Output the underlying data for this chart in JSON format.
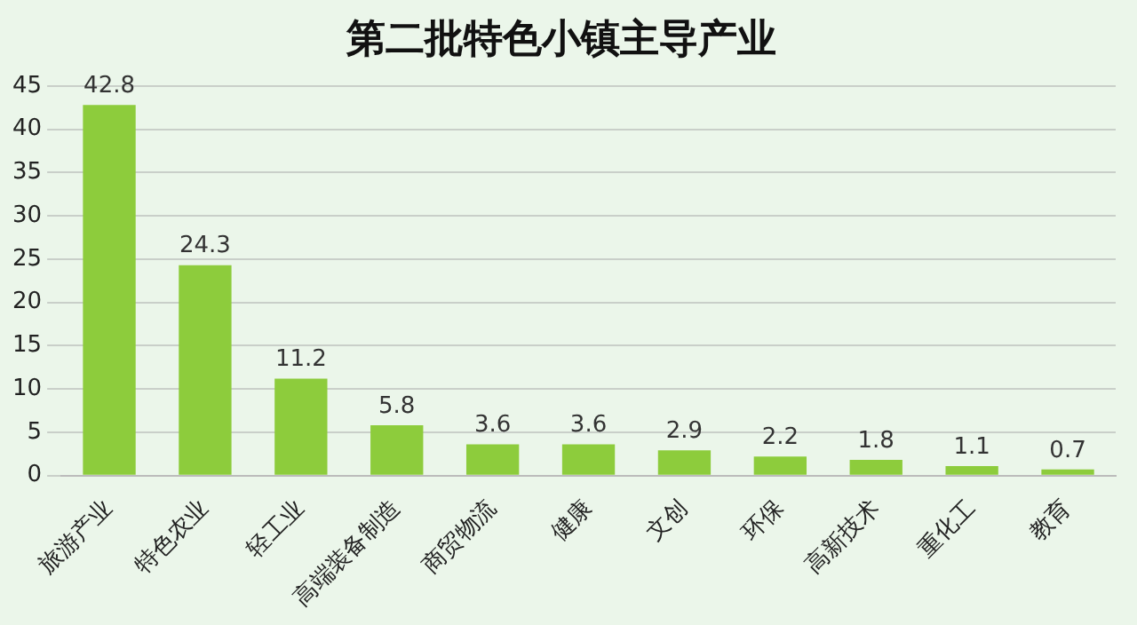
{
  "chart_data": {
    "type": "bar",
    "title": "第二批特色小镇主导产业",
    "categories": [
      "旅游产业",
      "特色农业",
      "轻工业",
      "高端装备制造",
      "商贸物流",
      "健康",
      "文创",
      "环保",
      "高新技术",
      "重化工",
      "教育"
    ],
    "values": [
      42.8,
      24.3,
      11.2,
      5.8,
      3.6,
      3.6,
      2.9,
      2.2,
      1.8,
      1.1,
      0.7
    ],
    "color": "#8dcc3c",
    "ylim": [
      0,
      45
    ],
    "yticks": [
      0,
      5,
      10,
      15,
      20,
      25,
      30,
      35,
      40,
      45
    ],
    "grid": "y",
    "data_labels": true,
    "legend": false
  }
}
